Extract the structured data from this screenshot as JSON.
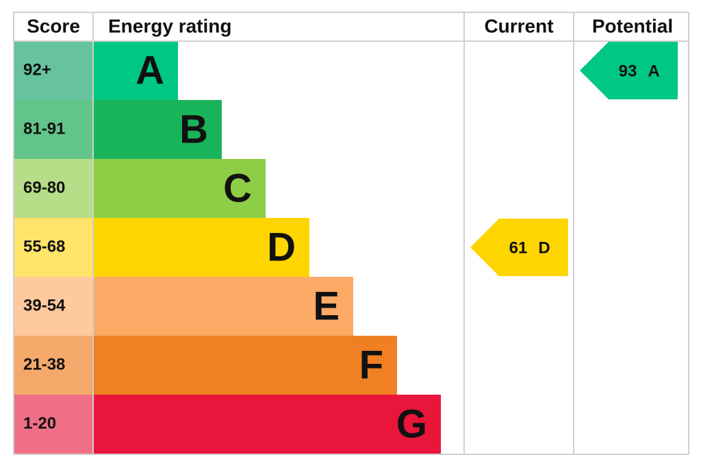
{
  "header": {
    "score": "Score",
    "rating": "Energy rating",
    "current": "Current",
    "potential": "Potential"
  },
  "bands": [
    {
      "score": "92+",
      "letter": "A",
      "color": "#00c781",
      "score_color": "#66c29f"
    },
    {
      "score": "81-91",
      "letter": "B",
      "color": "#19b459",
      "score_color": "#62c48a"
    },
    {
      "score": "69-80",
      "letter": "C",
      "color": "#8dce46",
      "score_color": "#b6dd88"
    },
    {
      "score": "55-68",
      "letter": "D",
      "color": "#ffd500",
      "score_color": "#ffe46a"
    },
    {
      "score": "39-54",
      "letter": "E",
      "color": "#fcaa65",
      "score_color": "#fdc99d"
    },
    {
      "score": "21-38",
      "letter": "F",
      "color": "#ef8023",
      "score_color": "#f4a96b"
    },
    {
      "score": "1-20",
      "letter": "G",
      "color": "#e9153b",
      "score_color": "#ef6f86"
    }
  ],
  "current": {
    "score": 61,
    "letter": "D"
  },
  "potential": {
    "score": 93,
    "letter": "A"
  }
}
